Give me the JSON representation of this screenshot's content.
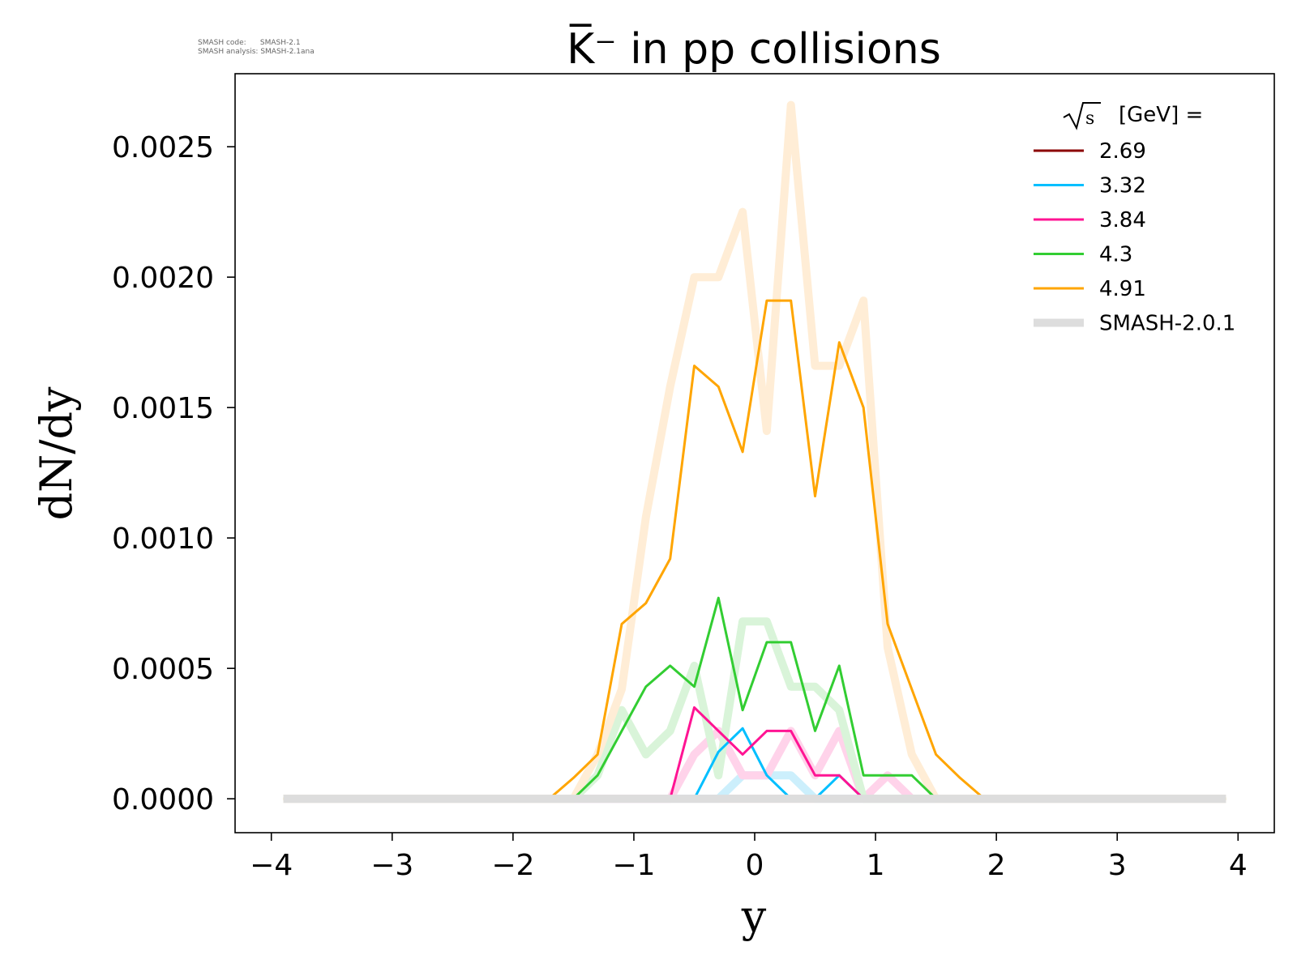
{
  "software": {
    "code_label": "SMASH code:",
    "code_value": "SMASH-2.1",
    "analysis_label": "SMASH analysis:",
    "analysis_value": "SMASH-2.1ana"
  },
  "chart_data": {
    "type": "line",
    "title": "K̅⁻ in pp collisions",
    "xlabel": "y",
    "ylabel": "dN/dy",
    "xlim": [
      -4.3,
      4.3
    ],
    "ylim": [
      -0.00013,
      0.00278
    ],
    "xticks": [
      -4,
      -3,
      -2,
      -1,
      0,
      1,
      2,
      3,
      4
    ],
    "xtick_labels": [
      "−4",
      "−3",
      "−2",
      "−1",
      "0",
      "1",
      "2",
      "3",
      "4"
    ],
    "yticks": [
      0,
      0.0005,
      0.001,
      0.0015,
      0.002,
      0.0025
    ],
    "ytick_labels": [
      "0.0000",
      "0.0005",
      "0.0010",
      "0.0015",
      "0.0020",
      "0.0025"
    ],
    "legend_title": "[GeV] =",
    "legend_title_symbol": "√s",
    "legend_position": "top-right",
    "x": [
      -3.9,
      -3.7,
      -3.5,
      -3.3,
      -3.1,
      -2.9,
      -2.7,
      -2.5,
      -2.3,
      -2.1,
      -1.9,
      -1.7,
      -1.5,
      -1.3,
      -1.1,
      -0.9,
      -0.7,
      -0.5,
      -0.3,
      -0.1,
      0.1,
      0.3,
      0.5,
      0.7,
      0.9,
      1.1,
      1.3,
      1.5,
      1.7,
      1.9,
      2.1,
      2.3,
      2.5,
      2.7,
      2.9,
      3.1,
      3.3,
      3.5,
      3.7,
      3.9
    ],
    "series": [
      {
        "name": "2.69",
        "color": "#8b0000",
        "values": [
          0,
          0,
          0,
          0,
          0,
          0,
          0,
          0,
          0,
          0,
          0,
          0,
          0,
          0,
          0,
          0,
          0,
          0,
          0,
          0,
          0,
          0,
          0,
          0,
          0,
          0,
          0,
          0,
          0,
          0,
          0,
          0,
          0,
          0,
          0,
          0,
          0,
          0,
          0,
          0
        ]
      },
      {
        "name": "3.32",
        "color": "#00bfff",
        "values": [
          0,
          0,
          0,
          0,
          0,
          0,
          0,
          0,
          0,
          0,
          0,
          0,
          0,
          0,
          0,
          0,
          0,
          0,
          0.00018,
          0.00027,
          9e-05,
          0,
          0,
          9e-05,
          0,
          0,
          0,
          0,
          0,
          0,
          0,
          0,
          0,
          0,
          0,
          0,
          0,
          0,
          0,
          0
        ]
      },
      {
        "name": "3.84",
        "color": "#ff1493",
        "values": [
          0,
          0,
          0,
          0,
          0,
          0,
          0,
          0,
          0,
          0,
          0,
          0,
          0,
          0,
          0,
          0,
          0,
          0.00035,
          0.00026,
          0.00017,
          0.00026,
          0.00026,
          9e-05,
          9e-05,
          0,
          0,
          0,
          0,
          0,
          0,
          0,
          0,
          0,
          0,
          0,
          0,
          0,
          0,
          0,
          0
        ]
      },
      {
        "name": "4.3",
        "color": "#32cd32",
        "values": [
          0,
          0,
          0,
          0,
          0,
          0,
          0,
          0,
          0,
          0,
          0,
          0,
          0,
          9e-05,
          0.00026,
          0.00043,
          0.00051,
          0.00043,
          0.00077,
          0.00034,
          0.0006,
          0.0006,
          0.00026,
          0.00051,
          9e-05,
          9e-05,
          9e-05,
          0,
          0,
          0,
          0,
          0,
          0,
          0,
          0,
          0,
          0,
          0,
          0,
          0
        ]
      },
      {
        "name": "4.91",
        "color": "#ffa500",
        "values": [
          0,
          0,
          0,
          0,
          0,
          0,
          0,
          0,
          0,
          0,
          0,
          0,
          8e-05,
          0.00017,
          0.00067,
          0.00075,
          0.00092,
          0.00166,
          0.00158,
          0.00133,
          0.00191,
          0.00191,
          0.00116,
          0.00175,
          0.0015,
          0.00067,
          0.00042,
          0.00017,
          8e-05,
          0,
          0,
          0,
          0,
          0,
          0,
          0,
          0,
          0,
          0,
          0
        ]
      },
      {
        "name": "SMASH-2.0.1",
        "color": "#dddddd",
        "values": [
          0,
          0,
          0,
          0,
          0,
          0,
          0,
          0,
          0,
          0,
          0,
          0,
          0,
          0,
          0,
          0,
          0,
          0,
          0,
          0,
          0,
          0,
          0,
          0,
          0,
          0,
          0,
          0,
          0,
          0,
          0,
          0,
          0,
          0,
          0,
          0,
          0,
          0,
          0,
          0
        ]
      }
    ],
    "reference_series": [
      {
        "name": "2.69 (SMASH-2.0.1)",
        "color": "#f3cccc",
        "values": [
          0,
          0,
          0,
          0,
          0,
          0,
          0,
          0,
          0,
          0,
          0,
          0,
          0,
          0,
          0,
          0,
          0,
          0,
          0,
          0,
          0,
          0,
          0,
          0,
          0,
          0,
          0,
          0,
          0,
          0,
          0,
          0,
          0,
          0,
          0,
          0,
          0,
          0,
          0,
          0
        ]
      },
      {
        "name": "3.32 (SMASH-2.0.1)",
        "color": "#cceffc",
        "values": [
          0,
          0,
          0,
          0,
          0,
          0,
          0,
          0,
          0,
          0,
          0,
          0,
          0,
          0,
          0,
          0,
          0,
          0,
          0,
          9e-05,
          9e-05,
          9e-05,
          0,
          0,
          0,
          0,
          0,
          0,
          0,
          0,
          0,
          0,
          0,
          0,
          0,
          0,
          0,
          0,
          0,
          0
        ]
      },
      {
        "name": "3.84 (SMASH-2.0.1)",
        "color": "#ffd3ea",
        "values": [
          0,
          0,
          0,
          0,
          0,
          0,
          0,
          0,
          0,
          0,
          0,
          0,
          0,
          0,
          0,
          0,
          0,
          0.00017,
          0.00026,
          9e-05,
          9e-05,
          0.00026,
          9e-05,
          0.00026,
          0,
          9e-05,
          0,
          0,
          0,
          0,
          0,
          0,
          0,
          0,
          0,
          0,
          0,
          0,
          0,
          0
        ]
      },
      {
        "name": "4.3 (SMASH-2.0.1)",
        "color": "#d9f4d9",
        "values": [
          0,
          0,
          0,
          0,
          0,
          0,
          0,
          0,
          0,
          0,
          0,
          0,
          0,
          9e-05,
          0.00034,
          0.00017,
          0.00026,
          0.00051,
          9e-05,
          0.00068,
          0.00068,
          0.00043,
          0.00043,
          0.00034,
          0,
          0,
          0,
          0,
          0,
          0,
          0,
          0,
          0,
          0,
          0,
          0,
          0,
          0,
          0,
          0
        ]
      },
      {
        "name": "4.91 (SMASH-2.0.1)",
        "color": "#ffedd6",
        "values": [
          0,
          0,
          0,
          0,
          0,
          0,
          0,
          0,
          0,
          0,
          0,
          0,
          0,
          0.00017,
          0.00042,
          0.00108,
          0.00158,
          0.002,
          0.002,
          0.00225,
          0.00141,
          0.00266,
          0.00166,
          0.00166,
          0.00191,
          0.00058,
          0.00017,
          0,
          0,
          0,
          0,
          0,
          0,
          0,
          0,
          0,
          0,
          0,
          0,
          0
        ]
      }
    ]
  }
}
